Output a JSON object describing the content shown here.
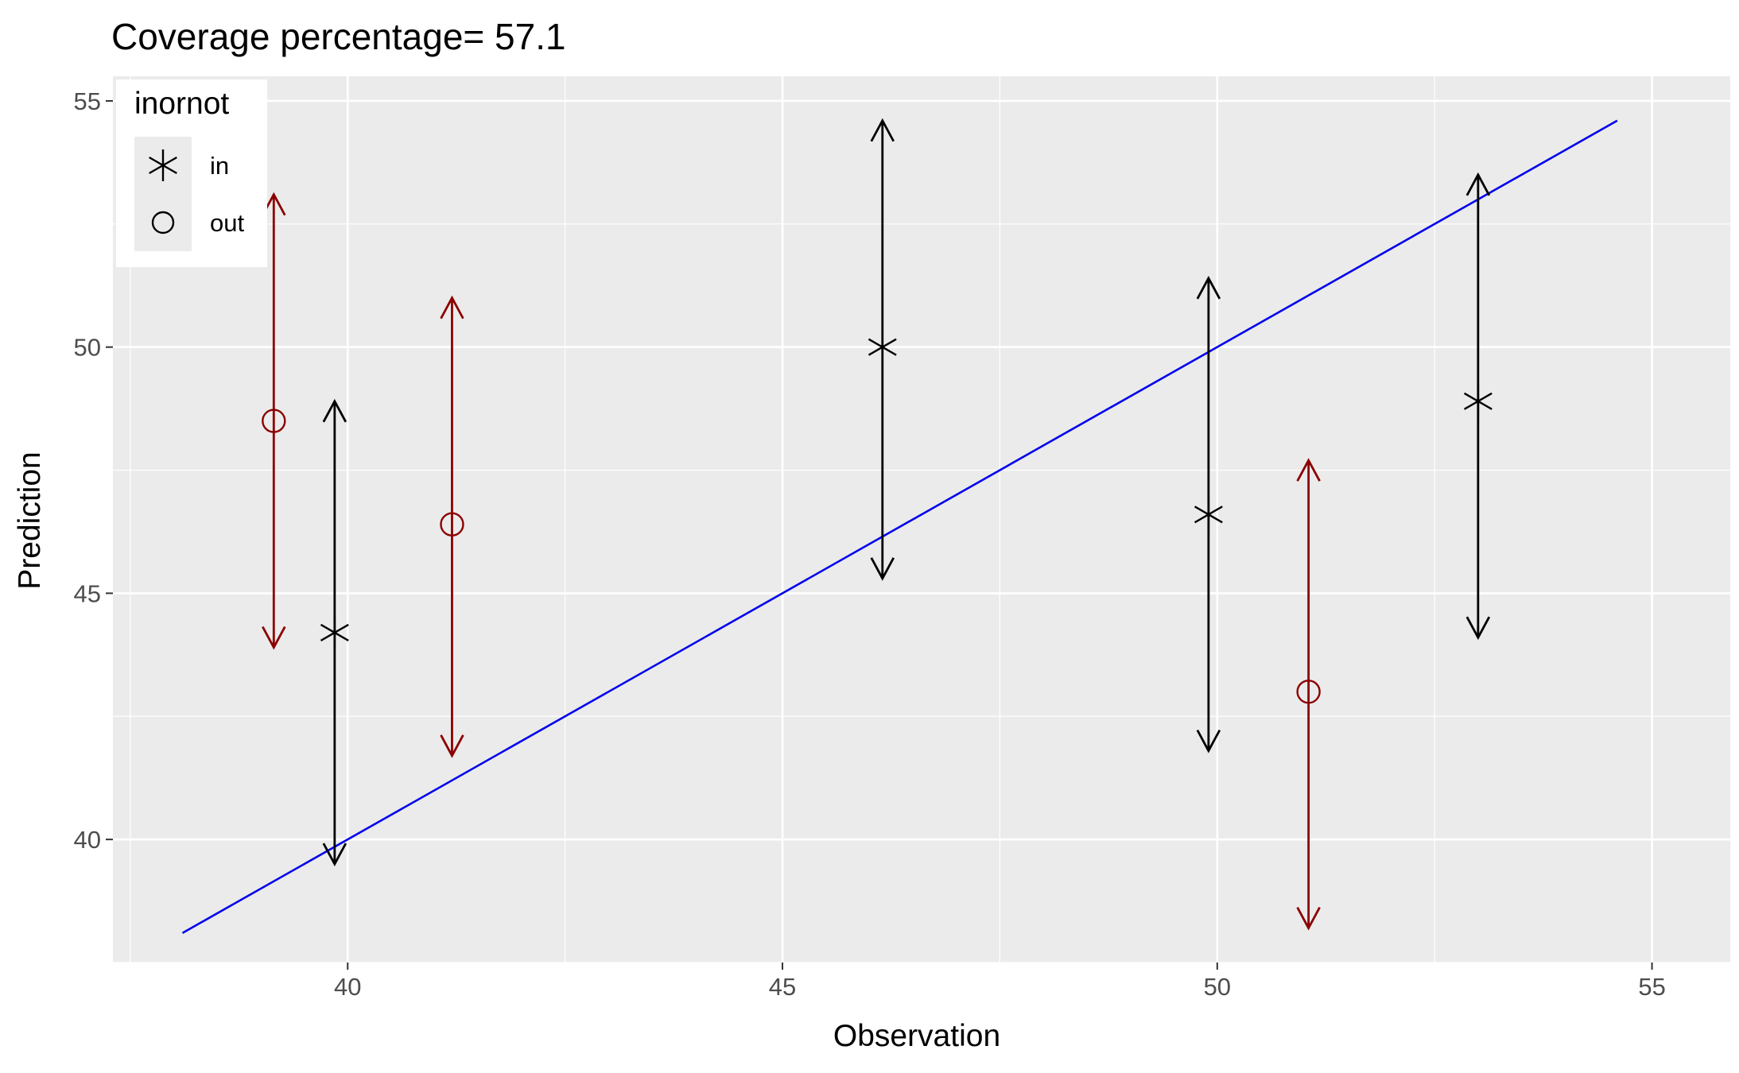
{
  "chart_data": {
    "type": "scatter",
    "title": "Coverage percentage= 57.1",
    "xlabel": "Observation",
    "ylabel": "Prediction",
    "xlim": [
      37.3,
      55.9
    ],
    "ylim": [
      37.5,
      55.5
    ],
    "xticks": [
      40,
      45,
      50,
      55
    ],
    "yticks": [
      40,
      45,
      50,
      55
    ],
    "grid": true,
    "legend": {
      "title": "inornot",
      "position": "top-left",
      "entries": [
        {
          "label": "in",
          "shape": "asterisk",
          "color": "#000000"
        },
        {
          "label": "out",
          "shape": "open-circle",
          "color": "#000000"
        }
      ]
    },
    "colors": {
      "in": "#000000",
      "out": "#8B0000",
      "reference_line": "#0000EE",
      "panel": "#EBEBEB",
      "grid": "#FFFFFF"
    },
    "reference_line": {
      "type": "identity",
      "x": [
        38.1,
        54.6
      ]
    },
    "series": [
      {
        "name": "in",
        "points": [
          {
            "x": 39.85,
            "y": 44.2,
            "lower": 39.5,
            "upper": 48.9
          },
          {
            "x": 46.15,
            "y": 50.0,
            "lower": 45.3,
            "upper": 54.6
          },
          {
            "x": 49.9,
            "y": 46.6,
            "lower": 41.8,
            "upper": 51.4
          },
          {
            "x": 53.0,
            "y": 48.9,
            "lower": 44.1,
            "upper": 53.5
          }
        ]
      },
      {
        "name": "out",
        "points": [
          {
            "x": 39.15,
            "y": 48.5,
            "lower": 43.9,
            "upper": 53.1
          },
          {
            "x": 41.2,
            "y": 46.4,
            "lower": 41.7,
            "upper": 51.0
          },
          {
            "x": 51.05,
            "y": 43.0,
            "lower": 38.2,
            "upper": 47.7
          }
        ]
      }
    ]
  }
}
